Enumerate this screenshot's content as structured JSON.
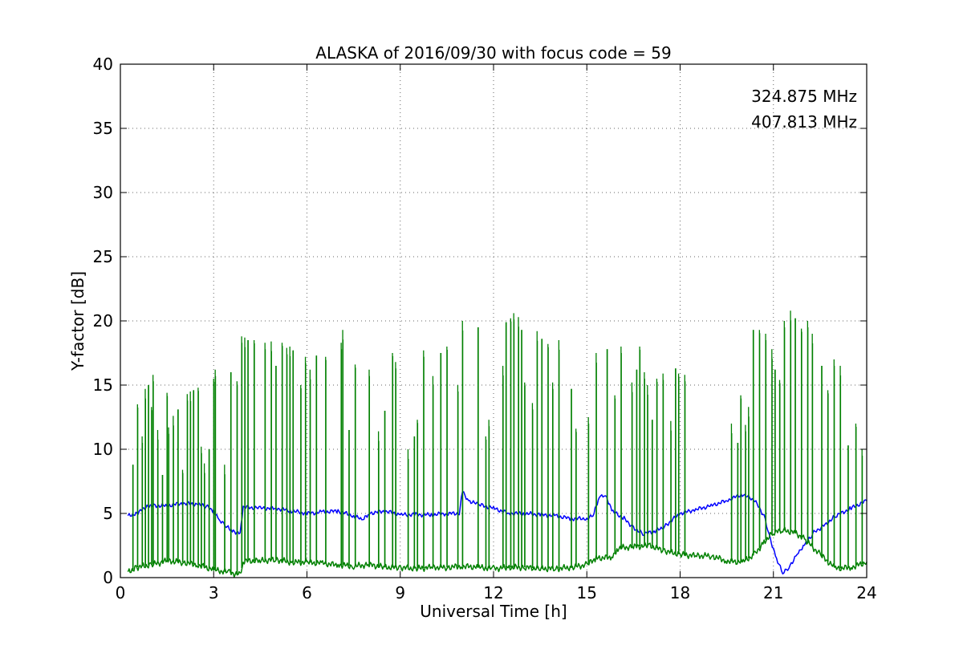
{
  "chart_data": {
    "type": "line",
    "title": "ALASKA of 2016/09/30 with focus code = 59",
    "xlabel": "Universal Time [h]",
    "ylabel": "Y-factor [dB]",
    "xlim": [
      0,
      24
    ],
    "ylim": [
      0,
      40
    ],
    "x_ticks": [
      "0",
      "3",
      "6",
      "9",
      "12",
      "15",
      "18",
      "21",
      "24"
    ],
    "y_ticks": [
      "0",
      "5",
      "10",
      "15",
      "20",
      "25",
      "30",
      "35",
      "40"
    ],
    "grid": true,
    "legend_position": "top-right",
    "series": [
      {
        "name": "324.875 MHz",
        "color": "#0000ff",
        "style": "continuous baseline with small noise",
        "points": [
          [
            0.25,
            4.8
          ],
          [
            0.5,
            5.0
          ],
          [
            0.75,
            5.4
          ],
          [
            1.0,
            5.6
          ],
          [
            1.5,
            5.6
          ],
          [
            2.0,
            5.8
          ],
          [
            2.5,
            5.7
          ],
          [
            2.8,
            5.5
          ],
          [
            3.0,
            5.2
          ],
          [
            3.2,
            4.5
          ],
          [
            3.4,
            4.0
          ],
          [
            3.6,
            3.6
          ],
          [
            3.85,
            3.5
          ],
          [
            3.95,
            5.5
          ],
          [
            4.5,
            5.4
          ],
          [
            5.0,
            5.4
          ],
          [
            5.5,
            5.2
          ],
          [
            6.0,
            5.0
          ],
          [
            6.5,
            5.1
          ],
          [
            7.0,
            5.2
          ],
          [
            7.5,
            4.8
          ],
          [
            7.8,
            4.5
          ],
          [
            8.0,
            5.0
          ],
          [
            8.5,
            5.2
          ],
          [
            9.0,
            4.9
          ],
          [
            9.5,
            4.9
          ],
          [
            10.0,
            4.9
          ],
          [
            10.5,
            5.0
          ],
          [
            10.9,
            5.0
          ],
          [
            11.0,
            6.7
          ],
          [
            11.2,
            6.0
          ],
          [
            11.5,
            5.7
          ],
          [
            12.0,
            5.4
          ],
          [
            12.5,
            5.0
          ],
          [
            13.0,
            5.0
          ],
          [
            13.5,
            4.9
          ],
          [
            14.0,
            4.8
          ],
          [
            14.5,
            4.6
          ],
          [
            15.0,
            4.6
          ],
          [
            15.2,
            4.8
          ],
          [
            15.4,
            6.3
          ],
          [
            15.6,
            6.5
          ],
          [
            15.8,
            5.2
          ],
          [
            16.2,
            4.6
          ],
          [
            16.5,
            3.9
          ],
          [
            16.8,
            3.4
          ],
          [
            17.2,
            3.6
          ],
          [
            17.5,
            4.0
          ],
          [
            18.0,
            5.0
          ],
          [
            18.5,
            5.3
          ],
          [
            19.0,
            5.6
          ],
          [
            19.5,
            6.0
          ],
          [
            20.0,
            6.5
          ],
          [
            20.4,
            6.0
          ],
          [
            20.7,
            4.8
          ],
          [
            20.9,
            3.0
          ],
          [
            21.1,
            1.5
          ],
          [
            21.3,
            0.3
          ],
          [
            21.5,
            0.8
          ],
          [
            21.8,
            2.0
          ],
          [
            22.0,
            2.5
          ],
          [
            22.3,
            3.5
          ],
          [
            22.7,
            4.2
          ],
          [
            23.0,
            4.8
          ],
          [
            23.5,
            5.4
          ],
          [
            24.0,
            6.0
          ]
        ]
      },
      {
        "name": "407.813 MHz",
        "color": "#008000",
        "style": "low baseline with frequent narrow vertical spikes",
        "baseline": [
          [
            0.25,
            0.4
          ],
          [
            0.5,
            0.8
          ],
          [
            1.0,
            1.0
          ],
          [
            1.5,
            1.3
          ],
          [
            2.0,
            1.2
          ],
          [
            2.5,
            1.0
          ],
          [
            3.0,
            0.6
          ],
          [
            3.5,
            0.4
          ],
          [
            3.85,
            0.2
          ],
          [
            3.95,
            1.3
          ],
          [
            4.5,
            1.3
          ],
          [
            5.0,
            1.4
          ],
          [
            5.5,
            1.2
          ],
          [
            6.0,
            1.2
          ],
          [
            6.5,
            1.1
          ],
          [
            7.0,
            1.0
          ],
          [
            7.5,
            0.9
          ],
          [
            8.0,
            1.0
          ],
          [
            8.5,
            0.8
          ],
          [
            9.0,
            0.8
          ],
          [
            9.5,
            0.7
          ],
          [
            10.0,
            0.8
          ],
          [
            10.5,
            0.8
          ],
          [
            11.0,
            0.9
          ],
          [
            11.5,
            0.8
          ],
          [
            12.0,
            0.7
          ],
          [
            12.5,
            0.8
          ],
          [
            13.0,
            0.8
          ],
          [
            13.5,
            0.7
          ],
          [
            14.0,
            0.7
          ],
          [
            14.5,
            0.8
          ],
          [
            15.0,
            1.0
          ],
          [
            15.3,
            1.5
          ],
          [
            15.8,
            1.6
          ],
          [
            16.0,
            2.3
          ],
          [
            16.5,
            2.4
          ],
          [
            17.0,
            2.5
          ],
          [
            17.5,
            2.1
          ],
          [
            18.0,
            1.8
          ],
          [
            18.5,
            1.7
          ],
          [
            19.0,
            1.7
          ],
          [
            19.5,
            1.3
          ],
          [
            20.0,
            1.2
          ],
          [
            20.4,
            1.8
          ],
          [
            20.7,
            2.8
          ],
          [
            21.0,
            3.5
          ],
          [
            21.3,
            3.7
          ],
          [
            21.7,
            3.5
          ],
          [
            22.0,
            3.0
          ],
          [
            22.5,
            1.8
          ],
          [
            23.0,
            0.7
          ],
          [
            23.5,
            0.8
          ],
          [
            24.0,
            1.2
          ]
        ],
        "spikes": [
          [
            0.4,
            8.8
          ],
          [
            0.55,
            13.5
          ],
          [
            0.7,
            11.0
          ],
          [
            0.8,
            14.7
          ],
          [
            0.9,
            15.0
          ],
          [
            1.0,
            13.3
          ],
          [
            1.05,
            15.8
          ],
          [
            1.2,
            11.5
          ],
          [
            1.35,
            8.0
          ],
          [
            1.5,
            14.4
          ],
          [
            1.55,
            11.7
          ],
          [
            1.7,
            12.6
          ],
          [
            1.85,
            13.1
          ],
          [
            2.0,
            8.4
          ],
          [
            2.15,
            14.3
          ],
          [
            2.25,
            14.5
          ],
          [
            2.35,
            14.6
          ],
          [
            2.5,
            14.8
          ],
          [
            2.6,
            10.2
          ],
          [
            2.7,
            8.9
          ],
          [
            2.85,
            10.0
          ],
          [
            3.0,
            15.5
          ],
          [
            3.05,
            16.2
          ],
          [
            3.35,
            8.8
          ],
          [
            3.55,
            16.0
          ],
          [
            3.75,
            15.3
          ],
          [
            3.9,
            18.8
          ],
          [
            4.0,
            18.7
          ],
          [
            4.1,
            18.5
          ],
          [
            4.3,
            18.5
          ],
          [
            4.65,
            18.3
          ],
          [
            4.85,
            18.4
          ],
          [
            5.0,
            16.5
          ],
          [
            5.2,
            18.3
          ],
          [
            5.35,
            17.9
          ],
          [
            5.45,
            18.0
          ],
          [
            5.55,
            17.7
          ],
          [
            5.8,
            15.0
          ],
          [
            5.95,
            17.2
          ],
          [
            6.1,
            16.2
          ],
          [
            6.3,
            17.3
          ],
          [
            6.6,
            17.2
          ],
          [
            7.1,
            18.3
          ],
          [
            7.15,
            19.3
          ],
          [
            7.35,
            11.5
          ],
          [
            7.55,
            16.6
          ],
          [
            8.0,
            16.2
          ],
          [
            8.3,
            11.4
          ],
          [
            8.5,
            13.0
          ],
          [
            8.75,
            17.5
          ],
          [
            8.85,
            16.8
          ],
          [
            9.25,
            10.0
          ],
          [
            9.45,
            11.0
          ],
          [
            9.55,
            12.3
          ],
          [
            9.75,
            17.7
          ],
          [
            10.05,
            15.7
          ],
          [
            10.3,
            17.5
          ],
          [
            10.5,
            18.0
          ],
          [
            10.85,
            15.0
          ],
          [
            11.0,
            20.0
          ],
          [
            11.5,
            19.5
          ],
          [
            11.75,
            11.0
          ],
          [
            11.85,
            12.3
          ],
          [
            12.3,
            16.5
          ],
          [
            12.4,
            19.9
          ],
          [
            12.55,
            20.2
          ],
          [
            12.65,
            20.6
          ],
          [
            12.8,
            20.3
          ],
          [
            12.9,
            19.3
          ],
          [
            13.0,
            15.2
          ],
          [
            13.25,
            13.6
          ],
          [
            13.4,
            19.2
          ],
          [
            13.55,
            18.6
          ],
          [
            13.75,
            18.2
          ],
          [
            13.9,
            15.2
          ],
          [
            14.1,
            18.5
          ],
          [
            14.5,
            14.7
          ],
          [
            14.65,
            11.6
          ],
          [
            15.05,
            12.5
          ],
          [
            15.3,
            17.5
          ],
          [
            15.65,
            17.8
          ],
          [
            15.9,
            14.2
          ],
          [
            16.1,
            18.0
          ],
          [
            16.45,
            15.2
          ],
          [
            16.6,
            16.2
          ],
          [
            16.7,
            18.0
          ],
          [
            16.85,
            16.0
          ],
          [
            16.95,
            15.0
          ],
          [
            17.1,
            12.3
          ],
          [
            17.25,
            15.5
          ],
          [
            17.45,
            15.9
          ],
          [
            17.7,
            12.2
          ],
          [
            17.85,
            16.3
          ],
          [
            17.95,
            15.9
          ],
          [
            18.15,
            15.8
          ],
          [
            19.65,
            12.0
          ],
          [
            19.85,
            10.5
          ],
          [
            19.95,
            14.2
          ],
          [
            20.1,
            11.9
          ],
          [
            20.2,
            13.3
          ],
          [
            20.35,
            19.3
          ],
          [
            20.55,
            19.3
          ],
          [
            20.75,
            19.0
          ],
          [
            20.95,
            17.8
          ],
          [
            21.05,
            16.2
          ],
          [
            21.2,
            15.4
          ],
          [
            21.35,
            20.0
          ],
          [
            21.55,
            20.8
          ],
          [
            21.7,
            20.2
          ],
          [
            21.9,
            19.4
          ],
          [
            22.1,
            20.0
          ],
          [
            22.25,
            19.0
          ],
          [
            22.55,
            16.5
          ],
          [
            22.75,
            14.6
          ],
          [
            22.95,
            17.0
          ],
          [
            23.15,
            16.5
          ],
          [
            23.4,
            10.3
          ],
          [
            23.65,
            12.0
          ],
          [
            23.85,
            10.0
          ]
        ]
      }
    ]
  }
}
